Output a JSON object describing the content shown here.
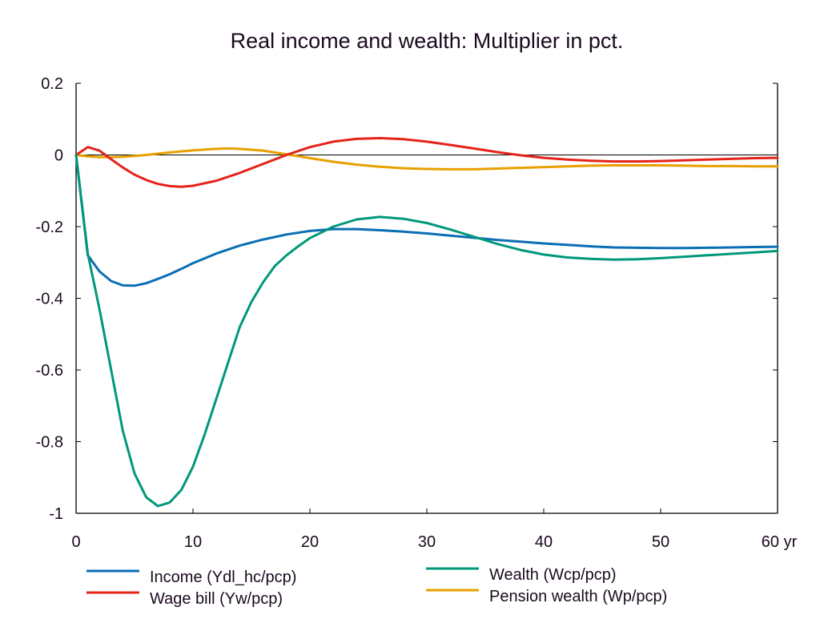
{
  "chart_data": {
    "type": "line",
    "title": "Real income and wealth: Multiplier in pct.",
    "xlabel": "",
    "ylabel": "",
    "x_unit_label": "yr",
    "xlim": [
      0,
      60
    ],
    "ylim": [
      -1,
      0.2
    ],
    "xticks": [
      0,
      10,
      20,
      30,
      40,
      50,
      60
    ],
    "xtick_labels": [
      "0",
      "10",
      "20",
      "30",
      "40",
      "50",
      "60 yr"
    ],
    "yticks": [
      0.2,
      0,
      -0.2,
      -0.4,
      -0.6,
      -0.8,
      -1
    ],
    "ytick_labels": [
      "0.2",
      "0",
      "-0.2",
      "-0.4",
      "-0.6",
      "-0.8",
      "-1"
    ],
    "zero_line": true,
    "grid": false,
    "legend_position": "bottom",
    "series": [
      {
        "name": "Income (Ydl_hc/pcp)",
        "color": "#0a6eb4",
        "x": [
          0,
          1,
          2,
          3,
          4,
          5,
          6,
          7,
          8,
          9,
          10,
          12,
          14,
          16,
          18,
          20,
          22,
          24,
          26,
          28,
          30,
          32,
          34,
          36,
          38,
          40,
          42,
          44,
          46,
          48,
          50,
          52,
          54,
          56,
          58,
          60
        ],
        "y": [
          0,
          -0.28,
          -0.325,
          -0.352,
          -0.364,
          -0.365,
          -0.358,
          -0.346,
          -0.333,
          -0.318,
          -0.302,
          -0.275,
          -0.253,
          -0.236,
          -0.222,
          -0.212,
          -0.207,
          -0.207,
          -0.21,
          -0.214,
          -0.219,
          -0.225,
          -0.231,
          -0.237,
          -0.242,
          -0.247,
          -0.251,
          -0.255,
          -0.258,
          -0.259,
          -0.26,
          -0.26,
          -0.259,
          -0.258,
          -0.257,
          -0.256
        ]
      },
      {
        "name": "Wage bill (Yw/pcp)",
        "color": "#e4231b",
        "x": [
          0,
          1,
          2,
          3,
          4,
          5,
          6,
          7,
          8,
          9,
          10,
          12,
          14,
          16,
          18,
          20,
          22,
          24,
          26,
          28,
          30,
          32,
          34,
          36,
          38,
          40,
          42,
          44,
          46,
          48,
          50,
          52,
          54,
          56,
          58,
          60
        ],
        "y": [
          0,
          0.022,
          0.012,
          -0.012,
          -0.035,
          -0.055,
          -0.07,
          -0.081,
          -0.087,
          -0.089,
          -0.086,
          -0.072,
          -0.05,
          -0.025,
          0.0,
          0.022,
          0.037,
          0.045,
          0.047,
          0.044,
          0.037,
          0.028,
          0.018,
          0.008,
          -0.001,
          -0.008,
          -0.013,
          -0.016,
          -0.018,
          -0.018,
          -0.017,
          -0.015,
          -0.013,
          -0.011,
          -0.009,
          -0.008
        ]
      },
      {
        "name": "Wealth (Wcp/pcp)",
        "color": "#00987a",
        "x": [
          0,
          1,
          2,
          3,
          4,
          5,
          6,
          7,
          8,
          9,
          10,
          11,
          12,
          13,
          14,
          15,
          16,
          17,
          18,
          19,
          20,
          22,
          24,
          26,
          28,
          30,
          32,
          34,
          36,
          38,
          40,
          42,
          44,
          46,
          48,
          50,
          52,
          54,
          56,
          58,
          60
        ],
        "y": [
          0,
          -0.275,
          -0.43,
          -0.6,
          -0.77,
          -0.889,
          -0.955,
          -0.98,
          -0.97,
          -0.935,
          -0.87,
          -0.78,
          -0.68,
          -0.58,
          -0.48,
          -0.41,
          -0.355,
          -0.31,
          -0.28,
          -0.255,
          -0.232,
          -0.2,
          -0.18,
          -0.173,
          -0.178,
          -0.19,
          -0.208,
          -0.228,
          -0.248,
          -0.265,
          -0.278,
          -0.286,
          -0.29,
          -0.292,
          -0.291,
          -0.288,
          -0.284,
          -0.28,
          -0.276,
          -0.272,
          -0.268
        ]
      },
      {
        "name": "Pension wealth (Wp/pcp)",
        "color": "#e8a000",
        "x": [
          0,
          1,
          2,
          3,
          4,
          5,
          6,
          8,
          10,
          12,
          13,
          14,
          16,
          18,
          20,
          22,
          24,
          26,
          28,
          30,
          32,
          34,
          36,
          38,
          40,
          42,
          44,
          46,
          48,
          50,
          52,
          54,
          56,
          58,
          60
        ],
        "y": [
          0,
          -0.004,
          -0.006,
          -0.006,
          -0.005,
          -0.003,
          0.0,
          0.007,
          0.013,
          0.017,
          0.018,
          0.017,
          0.012,
          0.002,
          -0.009,
          -0.019,
          -0.027,
          -0.033,
          -0.037,
          -0.039,
          -0.04,
          -0.04,
          -0.038,
          -0.036,
          -0.034,
          -0.032,
          -0.03,
          -0.029,
          -0.029,
          -0.029,
          -0.03,
          -0.031,
          -0.031,
          -0.032,
          -0.032
        ]
      }
    ]
  }
}
